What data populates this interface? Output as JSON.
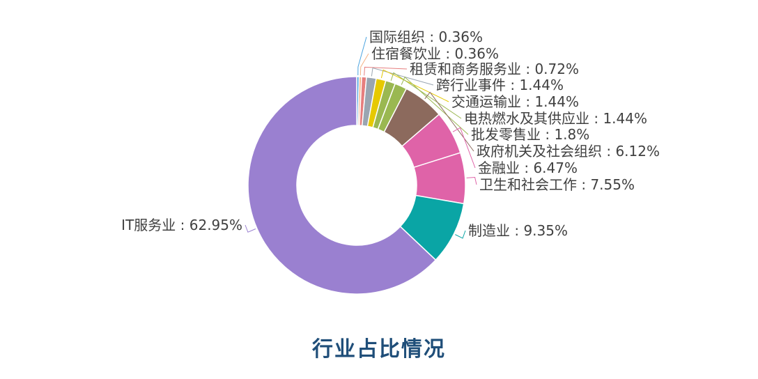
{
  "caption": "行业占比情况",
  "chart_data": {
    "type": "pie",
    "variant": "donut",
    "title": "",
    "label_separator": " : ",
    "slices": [
      {
        "label": "国际组织",
        "value": 0.36,
        "value_text": "0.36%",
        "color": "#4aa3df"
      },
      {
        "label": "住宿餐饮业",
        "value": 0.36,
        "value_text": "0.36%",
        "color": "#f4b183"
      },
      {
        "label": "租赁和商务服务业",
        "value": 0.72,
        "value_text": "0.72%",
        "color": "#e67e7e"
      },
      {
        "label": "跨行业事件",
        "value": 1.44,
        "value_text": "1.44%",
        "color": "#9aa5b1"
      },
      {
        "label": "交通运输业",
        "value": 1.44,
        "value_text": "1.44%",
        "color": "#e6c900"
      },
      {
        "label": "电热燃水及其供应业",
        "value": 1.44,
        "value_text": "1.44%",
        "color": "#9ab851"
      },
      {
        "label": "批发零售业",
        "value": 1.8,
        "value_text": "1.8%",
        "color": "#9ab851"
      },
      {
        "label": "政府机关及社会组织",
        "value": 6.12,
        "value_text": "6.12%",
        "color": "#8c6a5d"
      },
      {
        "label": "金融业",
        "value": 6.47,
        "value_text": "6.47%",
        "color": "#df63a8"
      },
      {
        "label": "卫生和社会工作",
        "value": 7.55,
        "value_text": "7.55%",
        "color": "#df63a8"
      },
      {
        "label": "制造业",
        "value": 9.35,
        "value_text": "9.35%",
        "color": "#0aa5a5"
      },
      {
        "label": "IT服务业",
        "value": 62.95,
        "value_text": "62.95%",
        "color": "#9a80d0"
      }
    ]
  }
}
